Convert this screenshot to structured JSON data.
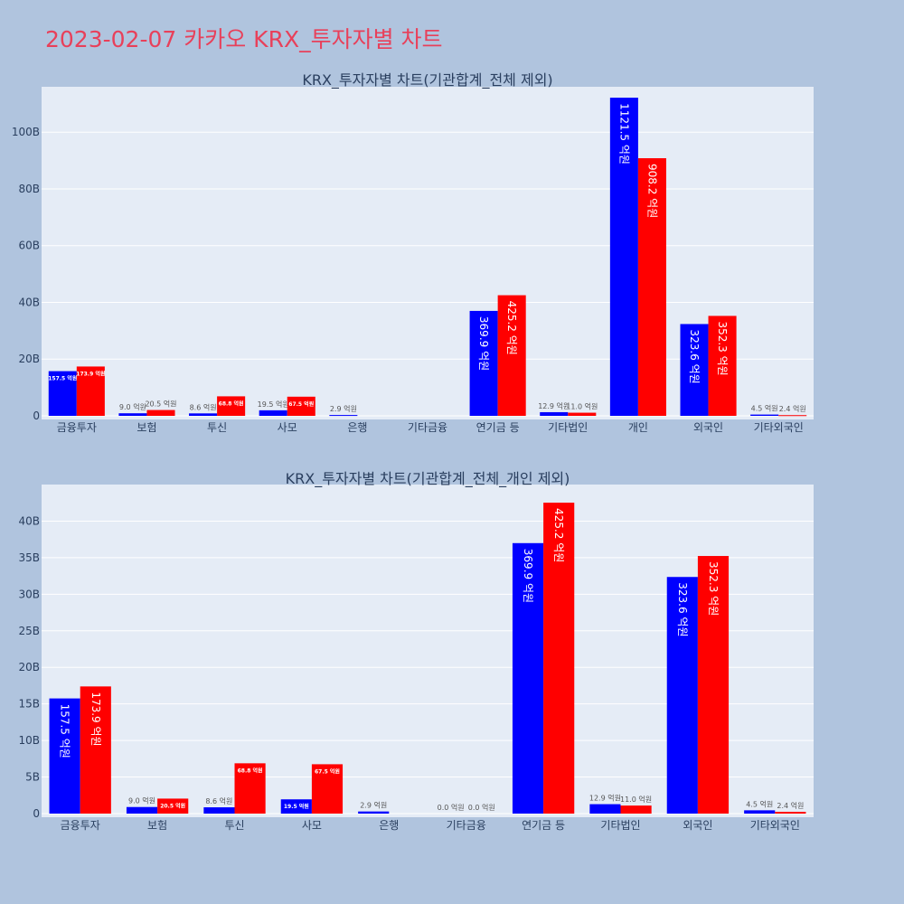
{
  "page": {
    "title": "2023-02-07 카카오 KRX_투자자별 차트"
  },
  "colors": {
    "buy": "#0000ff",
    "sell": "#ff0000",
    "plot_bg": "#e5ecf6",
    "page_bg": "#b0c4de",
    "title": "#e8405a"
  },
  "chart_data": [
    {
      "type": "bar",
      "title": "KRX_투자자별 차트(기관합계_전체 제외)",
      "categories": [
        "금융투자",
        "보험",
        "투신",
        "사모",
        "은행",
        "기타금융",
        "연기금 등",
        "기타법인",
        "개인",
        "외국인",
        "기타외국인"
      ],
      "series": [
        {
          "color": "#0000ff",
          "values": [
            15.75,
            0.9,
            0.86,
            1.95,
            0.29,
            0,
            36.99,
            1.29,
            112.15,
            32.36,
            0.45
          ],
          "labels": [
            "157.5 억원",
            "9.0 억원",
            "8.6 억원",
            "19.5 억원",
            "2.9 억원",
            "",
            "369.9 억원",
            "12.9 억원",
            "1121.5 억원",
            "323.6 억원",
            "4.5 억원"
          ]
        },
        {
          "color": "#ff0000",
          "values": [
            17.39,
            2.05,
            6.88,
            6.75,
            0,
            0,
            42.52,
            1.1,
            90.82,
            35.23,
            0.24
          ],
          "labels": [
            "173.9 억원",
            "20.5 억원",
            "68.8 억원",
            "67.5 억원",
            "",
            "",
            "425.2 억원",
            "11.0 억원",
            "908.2 억원",
            "352.3 억원",
            "2.4 억원"
          ]
        }
      ],
      "ylim": [
        0,
        116
      ],
      "yticks": [
        0,
        20,
        40,
        60,
        80,
        100
      ],
      "ytick_labels": [
        "0",
        "20B",
        "40B",
        "60B",
        "80B",
        "100B"
      ],
      "grid": true,
      "legend": "none"
    },
    {
      "type": "bar",
      "title": "KRX_투자자별 차트(기관합계_전체_개인 제외)",
      "categories": [
        "금융투자",
        "보험",
        "투신",
        "사모",
        "은행",
        "기타금융",
        "연기금 등",
        "기타법인",
        "외국인",
        "기타외국인"
      ],
      "series": [
        {
          "color": "#0000ff",
          "values": [
            15.75,
            0.9,
            0.86,
            1.95,
            0.29,
            0,
            36.99,
            1.29,
            32.36,
            0.45
          ],
          "labels": [
            "157.5 억원",
            "9.0 억원",
            "8.6 억원",
            "19.5 억원",
            "2.9 억원",
            "0.0 억원",
            "369.9 억원",
            "12.9 억원",
            "323.6 억원",
            "4.5 억원"
          ]
        },
        {
          "color": "#ff0000",
          "values": [
            17.39,
            2.05,
            6.88,
            6.75,
            0,
            0,
            42.52,
            1.1,
            35.23,
            0.24
          ],
          "labels": [
            "173.9 억원",
            "20.5 억원",
            "68.8 억원",
            "67.5 억원",
            "",
            "0.0 억원",
            "425.2 억원",
            "11.0 억원",
            "352.3 억원",
            "2.4 억원"
          ]
        }
      ],
      "ylim": [
        0,
        45
      ],
      "yticks": [
        0,
        5,
        10,
        15,
        20,
        25,
        30,
        35,
        40
      ],
      "ytick_labels": [
        "0",
        "5B",
        "10B",
        "15B",
        "20B",
        "25B",
        "30B",
        "35B",
        "40B"
      ],
      "grid": true,
      "legend": "none"
    }
  ]
}
